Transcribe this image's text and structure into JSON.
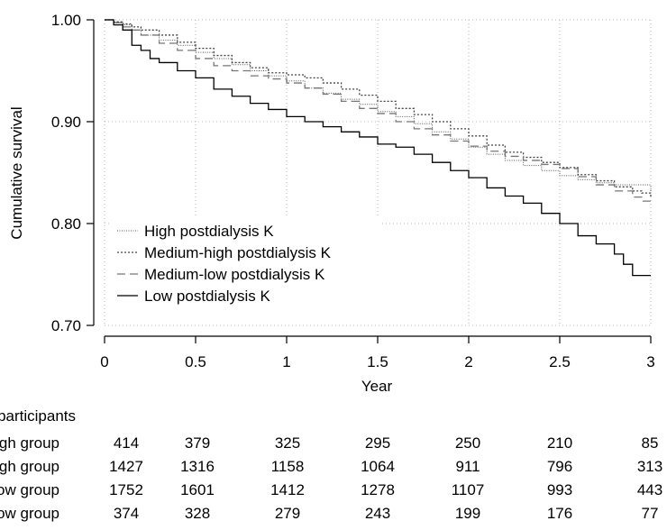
{
  "chart_data": {
    "type": "line",
    "subtype": "kaplan-meier step",
    "title": "",
    "xlabel": "Year",
    "ylabel": "Cumulative survival",
    "xlim": [
      0,
      3
    ],
    "ylim": [
      0.7,
      1.0
    ],
    "xticks": [
      0,
      0.5,
      1,
      1.5,
      2,
      2.5,
      3
    ],
    "xtick_labels": [
      "0",
      "0.5",
      "1",
      "1.5",
      "2",
      "2.5",
      "3"
    ],
    "yticks": [
      0.7,
      0.8,
      0.9,
      1.0
    ],
    "ytick_labels": [
      "0.70",
      "0.80",
      "0.90",
      "1.00"
    ],
    "grid": "dotted",
    "legend_position": "lower-left",
    "series": [
      {
        "name": "High postdialysis K",
        "line_style": "dotted-fine",
        "x": [
          0,
          0.05,
          0.1,
          0.15,
          0.2,
          0.3,
          0.4,
          0.5,
          0.6,
          0.7,
          0.8,
          0.9,
          1.0,
          1.1,
          1.2,
          1.3,
          1.4,
          1.5,
          1.6,
          1.7,
          1.8,
          1.9,
          2.0,
          2.1,
          2.2,
          2.3,
          2.4,
          2.5,
          2.6,
          2.7,
          2.8,
          2.9,
          2.95,
          3.0
        ],
        "y": [
          1.0,
          0.998,
          0.995,
          0.99,
          0.985,
          0.98,
          0.975,
          0.968,
          0.962,
          0.956,
          0.95,
          0.945,
          0.94,
          0.933,
          0.928,
          0.922,
          0.917,
          0.91,
          0.905,
          0.898,
          0.89,
          0.883,
          0.875,
          0.868,
          0.862,
          0.857,
          0.852,
          0.847,
          0.843,
          0.84,
          0.838,
          0.838,
          0.838,
          0.83
        ]
      },
      {
        "name": "Medium-high postdialysis K",
        "line_style": "dotted",
        "x": [
          0,
          0.05,
          0.1,
          0.15,
          0.2,
          0.3,
          0.4,
          0.5,
          0.6,
          0.7,
          0.8,
          0.9,
          1.0,
          1.1,
          1.2,
          1.3,
          1.4,
          1.5,
          1.6,
          1.7,
          1.8,
          1.9,
          2.0,
          2.1,
          2.2,
          2.3,
          2.4,
          2.5,
          2.6,
          2.7,
          2.8,
          2.9,
          2.95,
          3.0
        ],
        "y": [
          1.0,
          0.998,
          0.996,
          0.993,
          0.99,
          0.985,
          0.978,
          0.972,
          0.965,
          0.958,
          0.953,
          0.948,
          0.946,
          0.943,
          0.938,
          0.932,
          0.926,
          0.92,
          0.913,
          0.907,
          0.9,
          0.893,
          0.886,
          0.877,
          0.87,
          0.865,
          0.86,
          0.855,
          0.848,
          0.842,
          0.836,
          0.832,
          0.83,
          0.826
        ]
      },
      {
        "name": "Medium-low postdialysis K",
        "line_style": "dashed",
        "x": [
          0,
          0.05,
          0.1,
          0.15,
          0.2,
          0.3,
          0.4,
          0.5,
          0.6,
          0.7,
          0.8,
          0.9,
          1.0,
          1.1,
          1.2,
          1.3,
          1.4,
          1.5,
          1.6,
          1.7,
          1.8,
          1.9,
          2.0,
          2.1,
          2.2,
          2.3,
          2.4,
          2.5,
          2.6,
          2.7,
          2.8,
          2.9,
          2.95,
          3.0
        ],
        "y": [
          1.0,
          0.997,
          0.993,
          0.99,
          0.985,
          0.977,
          0.97,
          0.962,
          0.955,
          0.95,
          0.945,
          0.942,
          0.938,
          0.933,
          0.927,
          0.92,
          0.913,
          0.908,
          0.9,
          0.893,
          0.887,
          0.881,
          0.876,
          0.871,
          0.866,
          0.862,
          0.858,
          0.854,
          0.846,
          0.838,
          0.832,
          0.826,
          0.822,
          0.819
        ]
      },
      {
        "name": "Low postdialysis K",
        "line_style": "solid",
        "x": [
          0,
          0.05,
          0.1,
          0.15,
          0.2,
          0.25,
          0.3,
          0.4,
          0.5,
          0.6,
          0.7,
          0.8,
          0.9,
          1.0,
          1.1,
          1.2,
          1.3,
          1.4,
          1.5,
          1.6,
          1.7,
          1.8,
          1.9,
          2.0,
          2.1,
          2.2,
          2.3,
          2.4,
          2.5,
          2.6,
          2.7,
          2.8,
          2.85,
          2.9,
          3.0
        ],
        "y": [
          1.0,
          0.995,
          0.99,
          0.975,
          0.97,
          0.962,
          0.958,
          0.95,
          0.943,
          0.932,
          0.925,
          0.918,
          0.912,
          0.905,
          0.9,
          0.895,
          0.89,
          0.885,
          0.878,
          0.875,
          0.868,
          0.86,
          0.852,
          0.845,
          0.835,
          0.827,
          0.82,
          0.81,
          0.8,
          0.788,
          0.78,
          0.77,
          0.76,
          0.749,
          0.749
        ]
      }
    ]
  },
  "risk_table": {
    "title": "No. of participants",
    "rows": [
      {
        "label": "High group",
        "values": [
          "414",
          "379",
          "325",
          "295",
          "250",
          "210",
          "85"
        ]
      },
      {
        "label": "Medium-high group",
        "values": [
          "1427",
          "1316",
          "1158",
          "1064",
          "911",
          "796",
          "313"
        ]
      },
      {
        "label": "Medium-low group",
        "values": [
          "1752",
          "1601",
          "1412",
          "1278",
          "1107",
          "993",
          "443"
        ]
      },
      {
        "label": "Low group",
        "values": [
          "374",
          "328",
          "279",
          "243",
          "199",
          "176",
          "77"
        ]
      }
    ]
  }
}
